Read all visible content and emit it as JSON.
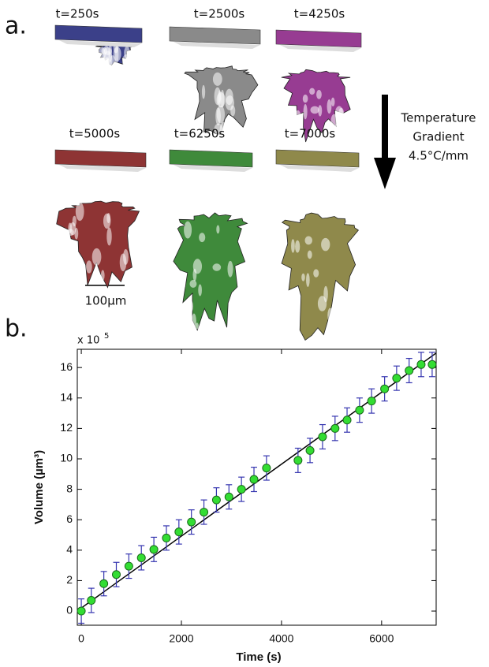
{
  "panel_a": {
    "label": "a.",
    "snapshots": [
      "t=250s",
      "t=2500s",
      "t=4250s",
      "t=5000s",
      "t=6250s",
      "t=7000s"
    ],
    "arrow_label": [
      "Temperature",
      "Gradient",
      "4.5°C/mm"
    ],
    "scale_bar": "100µm"
  },
  "chart_data": {
    "type": "scatter",
    "panel_label": "b.",
    "xlabel": "Time (s)",
    "ylabel": "Volume (µm³)",
    "y_multiplier": "x 10",
    "y_multiplier_exponent": "5",
    "xlim": [
      -80,
      7090
    ],
    "ylim": [
      -0.93,
      17.2
    ],
    "xticks": [
      0,
      2000,
      4000,
      6000
    ],
    "yticks": [
      0,
      2,
      4,
      6,
      8,
      10,
      12,
      14,
      16
    ],
    "series": [
      {
        "color": "#33dd33",
        "x": [
          0,
          200,
          450,
          700,
          950,
          1200,
          1450,
          1700,
          1950,
          2200,
          2450,
          2700,
          2950,
          3200,
          3450,
          3700,
          4330,
          4570,
          4820,
          5070,
          5310,
          5560,
          5800,
          6060,
          6300,
          6550,
          6790,
          7010
        ],
        "values": [
          0,
          0.7,
          1.8,
          2.4,
          2.95,
          3.5,
          4.05,
          4.8,
          5.2,
          5.85,
          6.5,
          7.3,
          7.5,
          8.0,
          8.65,
          9.4,
          9.9,
          10.55,
          11.45,
          12.0,
          12.55,
          13.2,
          13.8,
          14.6,
          15.3,
          15.8,
          16.2,
          16.2
        ],
        "errors": [
          0.8,
          0.8,
          0.8,
          0.8,
          0.8,
          0.8,
          0.8,
          0.8,
          0.8,
          0.8,
          0.8,
          0.8,
          0.8,
          0.8,
          0.8,
          0.8,
          0.8,
          0.8,
          0.8,
          0.8,
          0.8,
          0.8,
          0.8,
          0.8,
          0.8,
          0.8,
          0.8,
          0.8
        ]
      }
    ],
    "fit": {
      "color": "#000000",
      "x": [
        0,
        7090
      ],
      "values": [
        0.2,
        16.95
      ]
    }
  }
}
